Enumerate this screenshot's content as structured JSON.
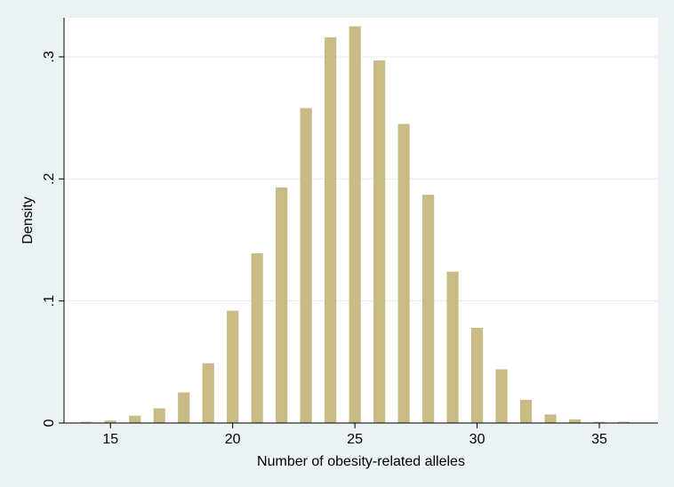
{
  "chart_data": {
    "type": "bar",
    "x_label": "Number of obesity-related alleles",
    "y_label": "Density",
    "x": [
      14,
      15,
      16,
      17,
      18,
      19,
      20,
      21,
      22,
      23,
      24,
      25,
      26,
      27,
      28,
      29,
      30,
      31,
      32,
      33,
      34,
      35,
      36
    ],
    "values": [
      0.001,
      0.002,
      0.006,
      0.012,
      0.025,
      0.049,
      0.092,
      0.139,
      0.193,
      0.258,
      0.316,
      0.325,
      0.297,
      0.245,
      0.187,
      0.124,
      0.078,
      0.044,
      0.019,
      0.007,
      0.003,
      0.001,
      0.001
    ],
    "color": "#c9bb85",
    "xlim": [
      13.1,
      37.4
    ],
    "xticks": [
      15,
      20,
      25,
      30,
      35
    ],
    "ylim": [
      0,
      0.332
    ],
    "yticks": [
      0,
      {
        "value": 0.1,
        "label": ".1"
      },
      {
        "value": 0.2,
        "label": ".2"
      },
      {
        "value": 0.3,
        "label": ".3"
      }
    ],
    "grid": true
  }
}
